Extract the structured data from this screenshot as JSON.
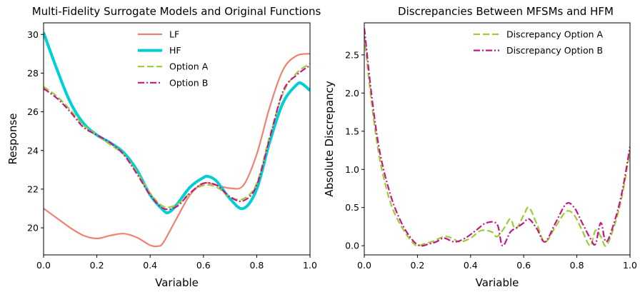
{
  "chart_data": [
    {
      "type": "line",
      "title": "Multi-Fidelity Surrogate Models and Original Functions",
      "xlabel": "Variable",
      "ylabel": "Response",
      "xlim": [
        0,
        1
      ],
      "ylim": [
        18.6,
        30.6
      ],
      "xticks": [
        "0.0",
        "0.2",
        "0.4",
        "0.6",
        "0.8",
        "1.0"
      ],
      "yticks": [
        "20",
        "22",
        "24",
        "26",
        "28",
        "30"
      ],
      "legend": "top-center",
      "grid": false,
      "series": [
        {
          "name": "LF",
          "color": "#f08070",
          "style": "solid",
          "x": [
            0,
            0.05,
            0.1,
            0.15,
            0.2,
            0.25,
            0.3,
            0.35,
            0.4,
            0.43,
            0.45,
            0.5,
            0.55,
            0.6,
            0.65,
            0.7,
            0.75,
            0.8,
            0.85,
            0.9,
            0.95,
            1.0
          ],
          "y": [
            21.0,
            20.5,
            20.0,
            19.6,
            19.45,
            19.6,
            19.7,
            19.5,
            19.1,
            19.05,
            19.25,
            20.5,
            21.7,
            22.3,
            22.2,
            22.05,
            22.2,
            23.8,
            26.3,
            28.2,
            28.9,
            29.0
          ]
        },
        {
          "name": "HF",
          "color": "#00cfd5",
          "style": "solid",
          "x": [
            0,
            0.05,
            0.1,
            0.15,
            0.2,
            0.25,
            0.3,
            0.35,
            0.4,
            0.45,
            0.47,
            0.5,
            0.55,
            0.6,
            0.62,
            0.65,
            0.7,
            0.75,
            0.8,
            0.85,
            0.9,
            0.95,
            0.97,
            1.0
          ],
          "y": [
            30.1,
            28.2,
            26.5,
            25.4,
            24.8,
            24.4,
            23.9,
            23.0,
            21.7,
            20.9,
            20.8,
            21.2,
            22.1,
            22.6,
            22.65,
            22.4,
            21.5,
            21.0,
            22.0,
            24.5,
            26.5,
            27.4,
            27.45,
            27.1
          ]
        },
        {
          "name": "Option A",
          "color": "#9acd32",
          "style": "dashed",
          "x": [
            0,
            0.05,
            0.1,
            0.15,
            0.2,
            0.25,
            0.3,
            0.35,
            0.4,
            0.45,
            0.5,
            0.55,
            0.6,
            0.65,
            0.7,
            0.75,
            0.8,
            0.85,
            0.9,
            0.95,
            1.0
          ],
          "y": [
            27.3,
            26.8,
            26.1,
            25.3,
            24.8,
            24.3,
            23.8,
            22.9,
            21.8,
            21.1,
            21.2,
            21.8,
            22.2,
            22.1,
            21.6,
            21.5,
            22.3,
            24.8,
            27.0,
            28.0,
            28.5
          ]
        },
        {
          "name": "Option B",
          "color": "#c71585",
          "style": "dashdot",
          "x": [
            0,
            0.05,
            0.1,
            0.15,
            0.2,
            0.25,
            0.3,
            0.35,
            0.4,
            0.45,
            0.5,
            0.55,
            0.6,
            0.65,
            0.7,
            0.75,
            0.8,
            0.85,
            0.9,
            0.95,
            1.0
          ],
          "y": [
            27.2,
            26.7,
            26.0,
            25.2,
            24.8,
            24.4,
            23.8,
            22.8,
            21.7,
            21.0,
            21.1,
            21.8,
            22.3,
            22.2,
            21.6,
            21.4,
            22.2,
            24.7,
            27.1,
            27.9,
            28.4
          ]
        }
      ]
    },
    {
      "type": "line",
      "title": "Discrepancies Between MFSMs and HFM",
      "xlabel": "Variable",
      "ylabel": "Absolute Discrepancy",
      "xlim": [
        0,
        1
      ],
      "ylim": [
        -0.12,
        2.92
      ],
      "xticks": [
        "0.0",
        "0.2",
        "0.4",
        "0.6",
        "0.8",
        "1.0"
      ],
      "yticks": [
        "0.0",
        "0.5",
        "1.0",
        "1.5",
        "2.0",
        "2.5"
      ],
      "legend": "top-right",
      "grid": false,
      "series": [
        {
          "name": "Discrepancy Option A",
          "color": "#9acd32",
          "style": "dashed",
          "x": [
            0,
            0.03,
            0.06,
            0.1,
            0.14,
            0.18,
            0.2,
            0.23,
            0.26,
            0.3,
            0.33,
            0.36,
            0.4,
            0.44,
            0.48,
            0.5,
            0.53,
            0.55,
            0.57,
            0.6,
            0.62,
            0.65,
            0.68,
            0.72,
            0.76,
            0.79,
            0.82,
            0.85,
            0.87,
            0.89,
            0.91,
            0.94,
            0.97,
            1.0
          ],
          "y": [
            2.75,
            1.8,
            1.1,
            0.55,
            0.25,
            0.05,
            0.0,
            0.03,
            0.06,
            0.12,
            0.1,
            0.05,
            0.1,
            0.2,
            0.18,
            0.12,
            0.25,
            0.35,
            0.22,
            0.4,
            0.5,
            0.28,
            0.05,
            0.25,
            0.45,
            0.4,
            0.2,
            0.0,
            0.2,
            0.12,
            0.0,
            0.25,
            0.65,
            1.25
          ]
        },
        {
          "name": "Discrepancy Option B",
          "color": "#c71585",
          "style": "dashdot",
          "x": [
            0,
            0.03,
            0.06,
            0.1,
            0.14,
            0.18,
            0.21,
            0.24,
            0.27,
            0.3,
            0.34,
            0.38,
            0.42,
            0.46,
            0.5,
            0.52,
            0.55,
            0.58,
            0.6,
            0.62,
            0.65,
            0.68,
            0.72,
            0.76,
            0.79,
            0.82,
            0.85,
            0.87,
            0.89,
            0.91,
            0.94,
            0.97,
            1.0
          ],
          "y": [
            2.85,
            1.9,
            1.2,
            0.65,
            0.3,
            0.08,
            0.0,
            0.02,
            0.05,
            0.1,
            0.05,
            0.1,
            0.2,
            0.3,
            0.28,
            0.0,
            0.18,
            0.25,
            0.3,
            0.35,
            0.22,
            0.05,
            0.3,
            0.55,
            0.5,
            0.3,
            0.1,
            0.02,
            0.3,
            0.05,
            0.3,
            0.7,
            1.3
          ]
        }
      ]
    }
  ]
}
